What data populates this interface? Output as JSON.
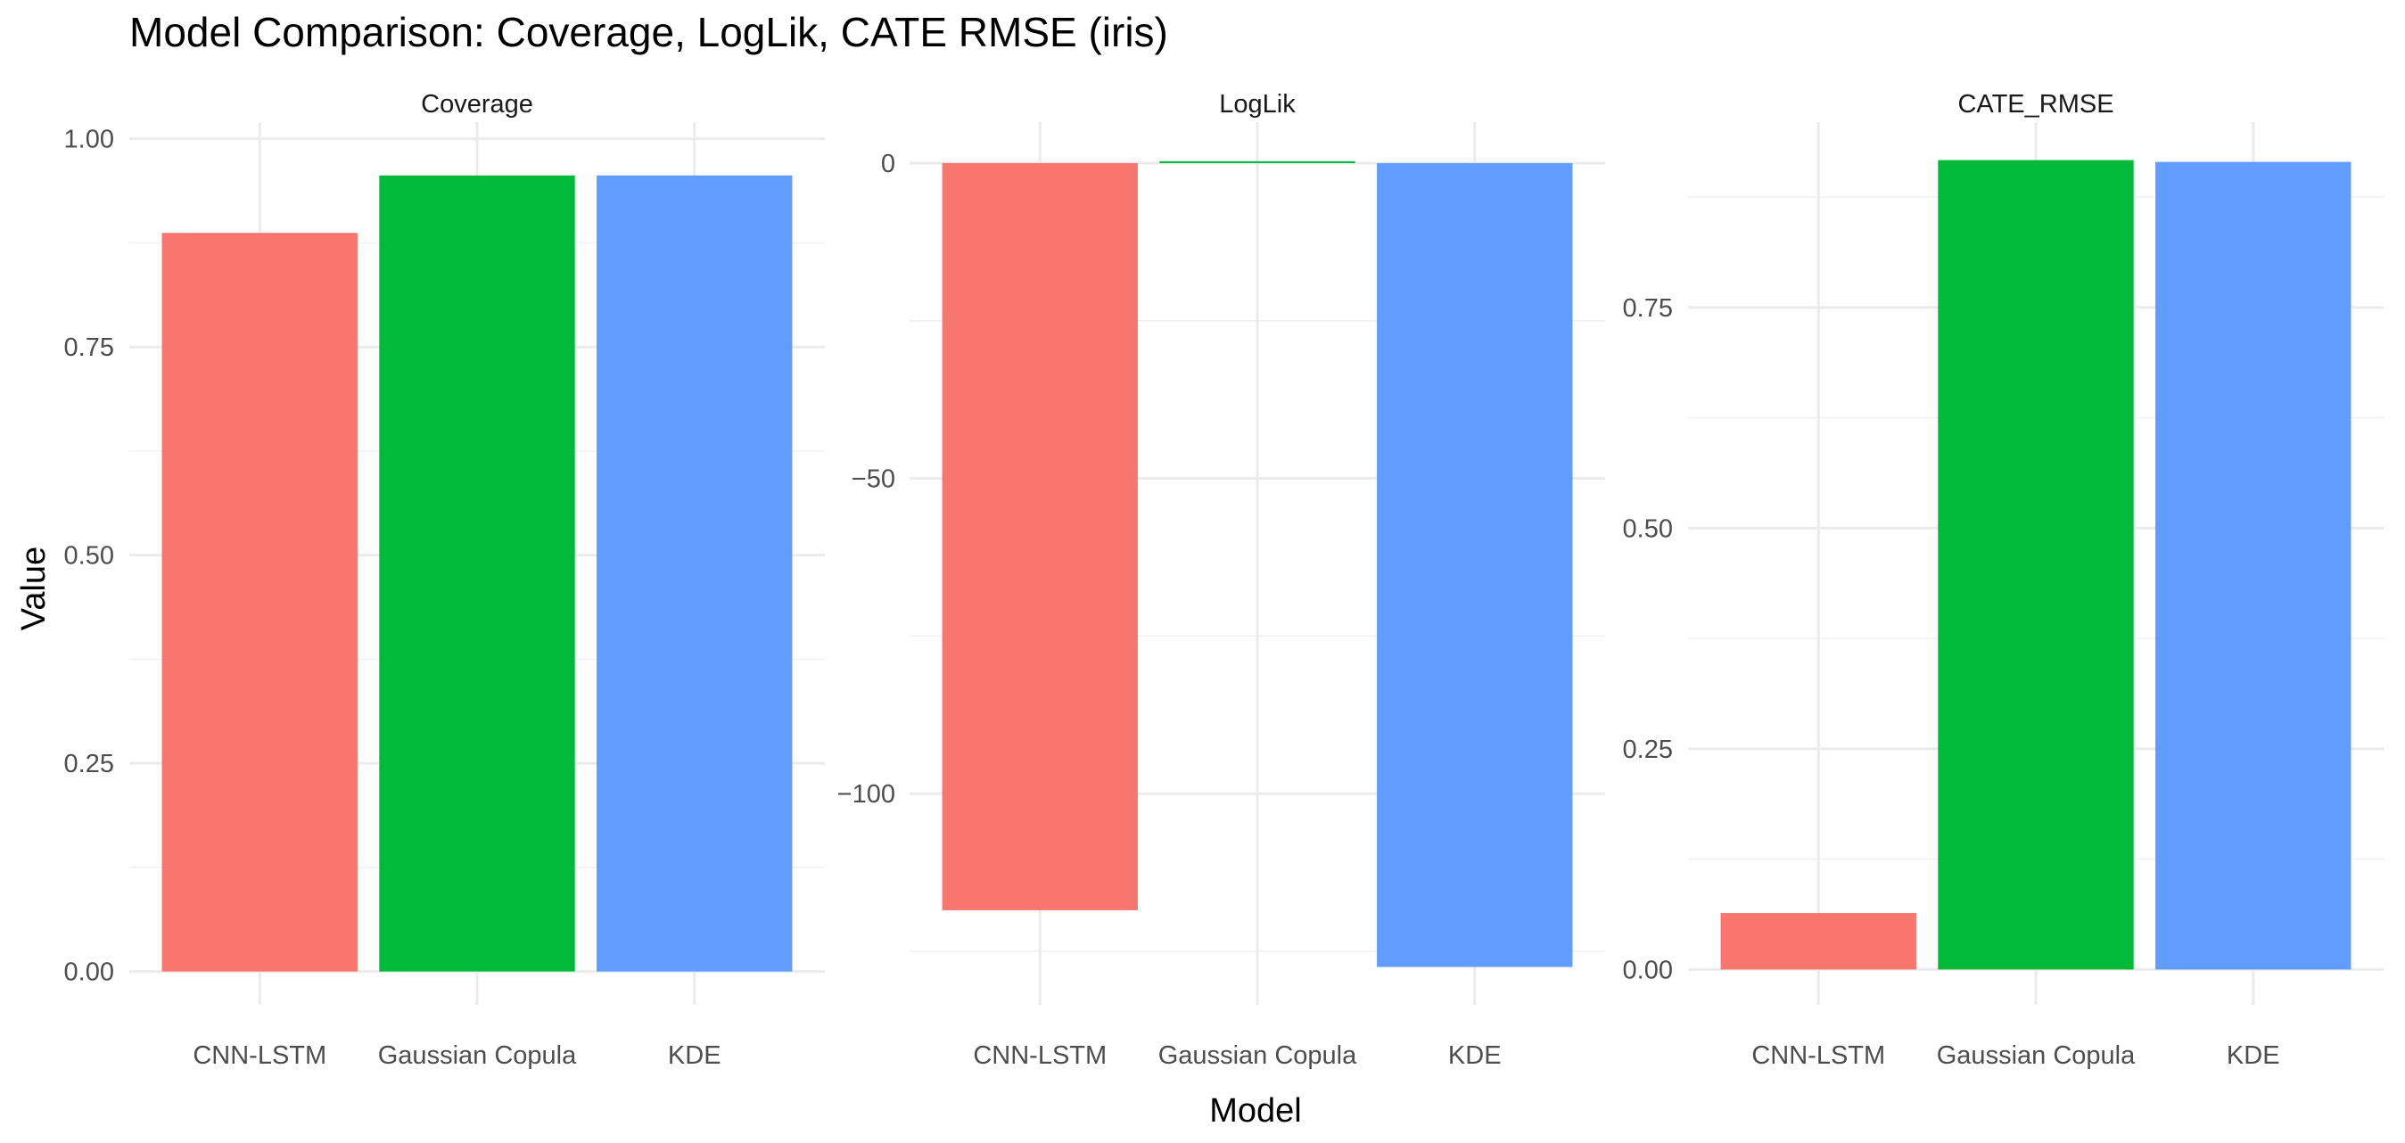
{
  "chart_data": {
    "type": "bar",
    "title": "Model Comparison: Coverage, LogLik, CATE RMSE (iris)",
    "xlabel": "Model",
    "ylabel": "Value",
    "categories": [
      "CNN-LSTM",
      "Gaussian Copula",
      "KDE"
    ],
    "colors": [
      "#F8766D",
      "#00BA38",
      "#619CFF"
    ],
    "grid": true,
    "legend": "none",
    "panels": [
      {
        "name": "Coverage",
        "values": [
          0.887,
          0.956,
          0.956
        ],
        "ylim": [
          -0.04,
          1.02
        ],
        "major_ticks": [
          0,
          0.25,
          0.5,
          0.75,
          1
        ],
        "tick_labels": [
          "0.00",
          "0.25",
          "0.50",
          "0.75",
          "1.00"
        ],
        "minor_ticks": [
          0.125,
          0.375,
          0.625,
          0.875
        ]
      },
      {
        "name": "LogLik",
        "values": [
          -118.5,
          0.3,
          -127.5
        ],
        "ylim": [
          -133.5,
          6.5
        ],
        "major_ticks": [
          0,
          -50,
          -100
        ],
        "tick_labels": [
          "0",
          "−50",
          "−100"
        ],
        "minor_ticks": [
          -25,
          -75,
          -125
        ]
      },
      {
        "name": "CATE_RMSE",
        "values": [
          0.064,
          0.917,
          0.915
        ],
        "ylim": [
          -0.04,
          0.96
        ],
        "major_ticks": [
          0,
          0.25,
          0.5,
          0.75
        ],
        "tick_labels": [
          "0.00",
          "0.25",
          "0.50",
          "0.75"
        ],
        "minor_ticks": [
          0.125,
          0.375,
          0.625,
          0.875
        ]
      }
    ]
  }
}
